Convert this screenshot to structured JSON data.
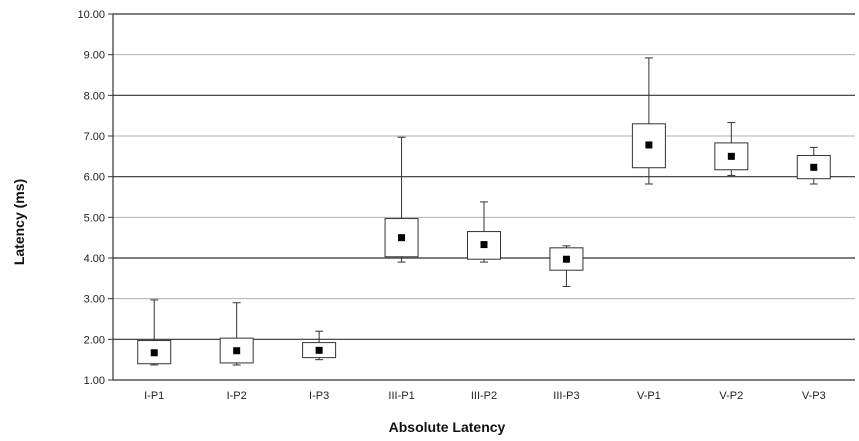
{
  "chart_data": {
    "type": "boxplot",
    "title": "",
    "xlabel": "Absolute Latency",
    "ylabel": "Latency (ms)",
    "ylim": [
      1.0,
      10.0
    ],
    "y_ticks": [
      "1.00",
      "2.00",
      "3.00",
      "4.00",
      "5.00",
      "6.00",
      "7.00",
      "8.00",
      "9.00",
      "10.00"
    ],
    "grid": true,
    "legend": "none",
    "categories": [
      "I-P1",
      "I-P2",
      "I-P3",
      "III-P1",
      "III-P2",
      "III-P3",
      "V-P1",
      "V-P2",
      "V-P3"
    ],
    "boxes": [
      {
        "category": "I-P1",
        "min": 1.37,
        "q1": 1.4,
        "median": 1.67,
        "q3": 1.97,
        "max": 2.97
      },
      {
        "category": "I-P2",
        "min": 1.37,
        "q1": 1.42,
        "median": 1.72,
        "q3": 2.03,
        "max": 2.9
      },
      {
        "category": "I-P3",
        "min": 1.5,
        "q1": 1.55,
        "median": 1.73,
        "q3": 1.92,
        "max": 2.2
      },
      {
        "category": "III-P1",
        "min": 3.9,
        "q1": 4.03,
        "median": 4.5,
        "q3": 4.97,
        "max": 6.97
      },
      {
        "category": "III-P2",
        "min": 3.9,
        "q1": 3.97,
        "median": 4.33,
        "q3": 4.65,
        "max": 5.38
      },
      {
        "category": "III-P3",
        "min": 3.3,
        "q1": 3.7,
        "median": 3.97,
        "q3": 4.25,
        "max": 4.3
      },
      {
        "category": "V-P1",
        "min": 5.82,
        "q1": 6.22,
        "median": 6.78,
        "q3": 7.3,
        "max": 8.92
      },
      {
        "category": "V-P2",
        "min": 6.03,
        "q1": 6.17,
        "median": 6.5,
        "q3": 6.83,
        "max": 7.33
      },
      {
        "category": "V-P3",
        "min": 5.82,
        "q1": 5.95,
        "median": 6.23,
        "q3": 6.52,
        "max": 6.72
      }
    ],
    "colors": {
      "box_fill": "#ffffff",
      "box_stroke": "#333333",
      "median_marker": "#000000",
      "grid_major": "#333333",
      "grid_minor": "#b0b0b0"
    }
  }
}
